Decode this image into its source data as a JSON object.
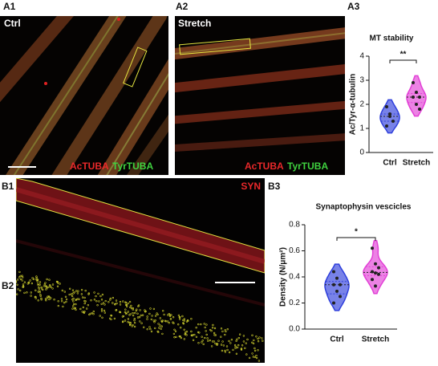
{
  "panels": {
    "a1": "A1",
    "a2": "A2",
    "a3": "A3",
    "b1": "B1",
    "b2": "B2",
    "b3": "B3"
  },
  "images": [
    {
      "label": "Ctrl",
      "channels": [
        "AcTUBA",
        "TyrTUBA"
      ]
    },
    {
      "label": "Stretch",
      "channels": [
        "AcTUBA",
        "TyrTUBA"
      ]
    },
    {
      "channels": [
        "SYN"
      ]
    }
  ],
  "chart_data": [
    {
      "type": "violin",
      "title": "MT stability",
      "y_label": "Ac/Tyr-α-tubulin",
      "categories": [
        "Ctrl",
        "Stretch"
      ],
      "colors": [
        "#2f3fdc",
        "#e23fd6"
      ],
      "values": [
        [
          1.9,
          1.6,
          1.3,
          1.1,
          1.5
        ],
        [
          2.9,
          2.5,
          2.3,
          2.3,
          2.0,
          1.8
        ]
      ],
      "ylim": [
        0,
        4
      ],
      "yticks": [
        0,
        1,
        2,
        3,
        4
      ],
      "significance": "**"
    },
    {
      "type": "violin",
      "title": "Synaptophysin vescicles",
      "y_label": "Density (N/μm²)",
      "categories": [
        "Ctrl",
        "Stretch"
      ],
      "colors": [
        "#2f3fdc",
        "#e23fd6"
      ],
      "values": [
        [
          0.44,
          0.39,
          0.34,
          0.34,
          0.29,
          0.25,
          0.2
        ],
        [
          0.62,
          0.5,
          0.47,
          0.44,
          0.43,
          0.42,
          0.38,
          0.33
        ]
      ],
      "ylim": [
        0,
        0.8
      ],
      "yticks": [
        {
          "value": 0,
          "label": "0.0"
        },
        0.2,
        0.4,
        0.6,
        0.8
      ],
      "significance": "*"
    }
  ]
}
